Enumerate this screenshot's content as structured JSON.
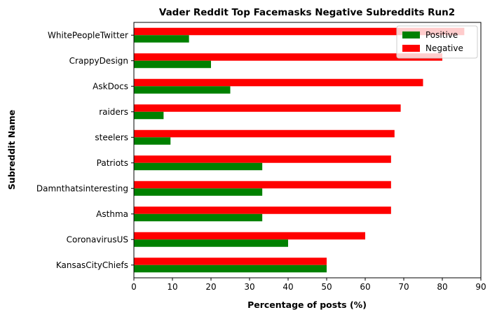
{
  "chart_data": {
    "type": "bar",
    "orientation": "horizontal",
    "title": "Vader Reddit Top Facemasks Negative Subreddits Run2",
    "xlabel": "Percentage of posts (%)",
    "ylabel": "Subreddit Name",
    "xlim": [
      0,
      90
    ],
    "xticks": [
      "0",
      "10",
      "20",
      "30",
      "40",
      "50",
      "60",
      "70",
      "80",
      "90"
    ],
    "grid": false,
    "legend_position": "top-right",
    "categories": [
      "KansasCityChiefs",
      "CoronavirusUS",
      "Asthma",
      "Damnthatsinteresting",
      "Patriots",
      "steelers",
      "raiders",
      "AskDocs",
      "CrappyDesign",
      "WhitePeopleTwitter"
    ],
    "series": [
      {
        "name": "Positive",
        "color": "#008000",
        "values": [
          50,
          40,
          33.3,
          33.3,
          33.3,
          9.5,
          7.7,
          25,
          20,
          14.3
        ]
      },
      {
        "name": "Negative",
        "color": "#ff0000",
        "values": [
          50,
          60,
          66.7,
          66.7,
          66.7,
          67.6,
          69.2,
          75,
          80,
          85.7
        ]
      }
    ]
  }
}
